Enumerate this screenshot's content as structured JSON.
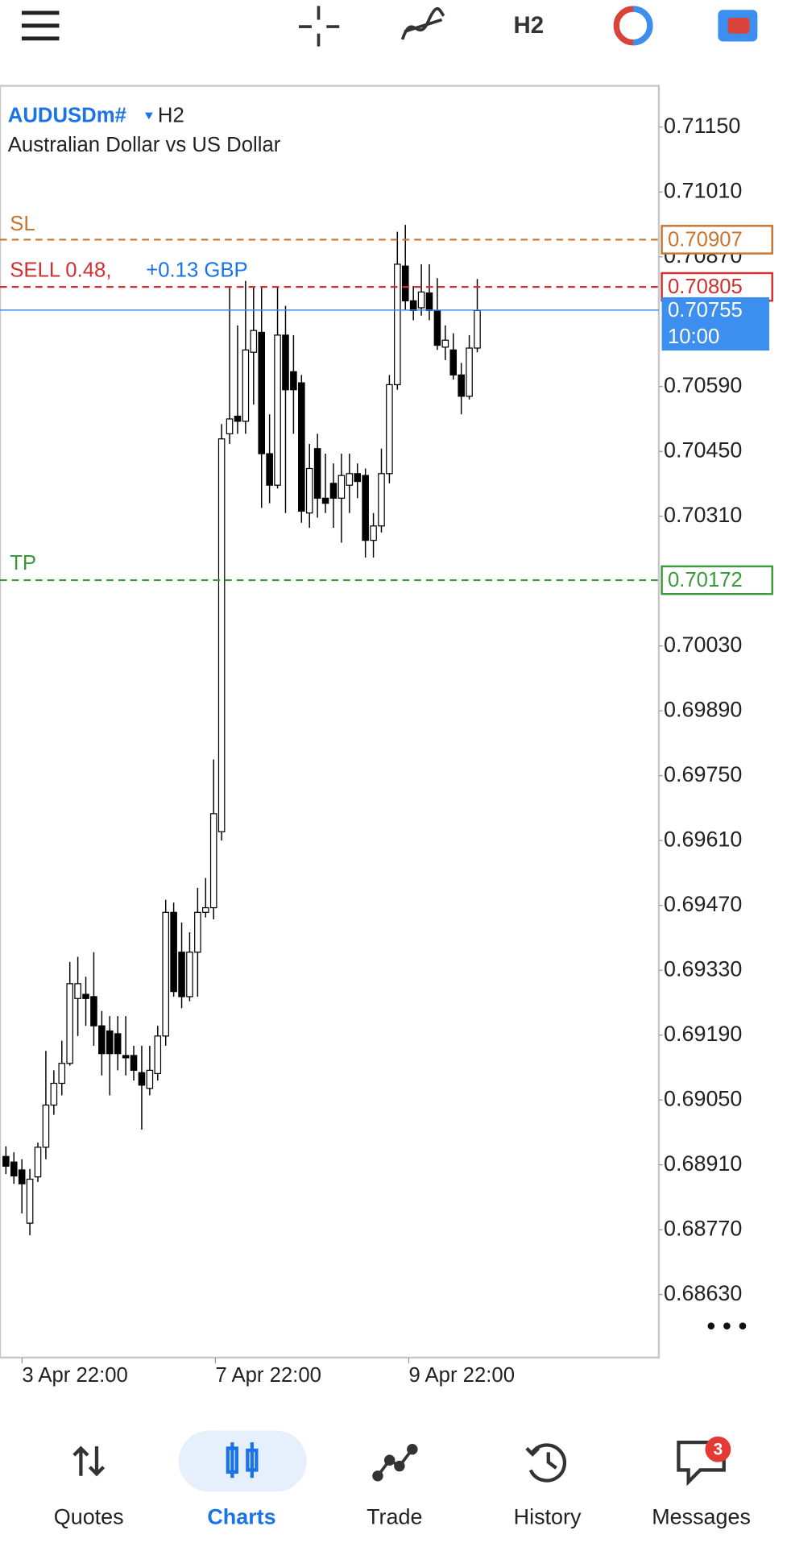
{
  "toolbar": {
    "timeframe": "H2"
  },
  "chart_data": {
    "type": "candlestick",
    "symbol": "AUDUSDm#",
    "timeframe": "H2",
    "description": "Australian Dollar vs US Dollar",
    "open": [
      0.68928,
      0.68916,
      0.68899,
      0.68784,
      0.68884,
      0.68948,
      0.69039,
      0.69086,
      0.69129,
      0.69269,
      0.69278,
      0.69273,
      0.6921,
      0.69199,
      0.69193,
      0.69146,
      0.69146,
      0.69109,
      0.69075,
      0.69107,
      0.69188,
      0.69455,
      0.69369,
      0.69273,
      0.69369,
      0.69455,
      0.69465,
      0.69629,
      0.70488,
      0.70526,
      0.70515,
      0.70664,
      0.70707,
      0.70445,
      0.70377,
      0.70701,
      0.70622,
      0.70598,
      0.70317,
      0.70456,
      0.70349,
      0.70381,
      0.70349,
      0.70377,
      0.70402,
      0.70398,
      0.70258,
      0.70289,
      0.70402,
      0.70594,
      0.7085,
      0.70775,
      0.7076,
      0.70792,
      0.70754,
      0.70675,
      0.70669,
      0.70615,
      0.70569,
      0.70673
    ],
    "high": [
      0.6895,
      0.68937,
      0.68922,
      0.68901,
      0.68958,
      0.69156,
      0.69114,
      0.69178,
      0.69348,
      0.69359,
      0.69316,
      0.69369,
      0.69242,
      0.69231,
      0.69231,
      0.69231,
      0.69167,
      0.69167,
      0.69167,
      0.6921,
      0.69482,
      0.69476,
      0.69433,
      0.69412,
      0.69508,
      0.69529,
      0.69785,
      0.70509,
      0.70807,
      0.70722,
      0.70818,
      0.70807,
      0.70807,
      0.7053,
      0.70807,
      0.70764,
      0.70701,
      0.70615,
      0.70466,
      0.70488,
      0.70445,
      0.70424,
      0.70445,
      0.70445,
      0.70424,
      0.70413,
      0.70317,
      0.70456,
      0.70615,
      0.70924,
      0.70939,
      0.70807,
      0.70854,
      0.70854,
      0.70824,
      0.70722,
      0.70705,
      0.70641,
      0.70701,
      0.70822
    ],
    "low": [
      0.6889,
      0.68869,
      0.68805,
      0.68758,
      0.68873,
      0.68922,
      0.69018,
      0.6906,
      0.69124,
      0.69188,
      0.6921,
      0.69167,
      0.69103,
      0.6906,
      0.69114,
      0.69103,
      0.69092,
      0.68986,
      0.6906,
      0.69092,
      0.69167,
      0.69273,
      0.69248,
      0.69263,
      0.69273,
      0.69444,
      0.6944,
      0.6961,
      0.70466,
      0.70488,
      0.70488,
      0.70551,
      0.70328,
      0.70338,
      0.7037,
      0.70317,
      0.70488,
      0.70296,
      0.70285,
      0.70307,
      0.70317,
      0.70285,
      0.70253,
      0.70317,
      0.70349,
      0.70221,
      0.70221,
      0.70275,
      0.70381,
      0.70583,
      0.70754,
      0.70733,
      0.70743,
      0.70733,
      0.70669,
      0.70647,
      0.70605,
      0.7053,
      0.70562,
      0.70664
    ],
    "close": [
      0.68907,
      0.68886,
      0.68869,
      0.68879,
      0.68948,
      0.69039,
      0.69086,
      0.69129,
      0.69301,
      0.69301,
      0.69269,
      0.6921,
      0.6915,
      0.6915,
      0.6915,
      0.69141,
      0.69114,
      0.69082,
      0.69114,
      0.69188,
      0.69455,
      0.69284,
      0.69273,
      0.69369,
      0.69455,
      0.69465,
      0.69668,
      0.70477,
      0.7052,
      0.70515,
      0.70669,
      0.70711,
      0.70445,
      0.70377,
      0.70701,
      0.70583,
      0.70583,
      0.70321,
      0.70413,
      0.70349,
      0.70338,
      0.70349,
      0.70398,
      0.70402,
      0.70385,
      0.70258,
      0.70289,
      0.70402,
      0.70594,
      0.70854,
      0.70775,
      0.70754,
      0.70794,
      0.70754,
      0.70679,
      0.7069,
      0.70615,
      0.70569,
      0.70673,
      0.70754
    ],
    "ylim": [
      0.68494,
      0.71239
    ],
    "yticks": [
      {
        "value": 0.7115,
        "label": "0.71150"
      },
      {
        "value": 0.7101,
        "label": "0.71010"
      },
      {
        "value": 0.7087,
        "label": "0.70870"
      },
      {
        "value": 0.7059,
        "label": "0.70590"
      },
      {
        "value": 0.7045,
        "label": "0.70450"
      },
      {
        "value": 0.7031,
        "label": "0.70310"
      },
      {
        "value": 0.7003,
        "label": "0.70030"
      },
      {
        "value": 0.6989,
        "label": "0.69890"
      },
      {
        "value": 0.6975,
        "label": "0.69750"
      },
      {
        "value": 0.6961,
        "label": "0.69610"
      },
      {
        "value": 0.6947,
        "label": "0.69470"
      },
      {
        "value": 0.6933,
        "label": "0.69330"
      },
      {
        "value": 0.6919,
        "label": "0.69190"
      },
      {
        "value": 0.6905,
        "label": "0.69050"
      },
      {
        "value": 0.6891,
        "label": "0.68910"
      },
      {
        "value": 0.6877,
        "label": "0.68770"
      },
      {
        "value": 0.6863,
        "label": "0.68630"
      }
    ],
    "xtick_labels": [
      "3 Apr 22:00",
      "7 Apr 22:00",
      "9 Apr 22:00"
    ],
    "stop_loss": {
      "name": "SL",
      "value": 0.70907,
      "color": "#c8752f"
    },
    "take_profit": {
      "name": "TP",
      "value": 0.70172,
      "color": "#3a9a3a"
    },
    "order": {
      "label": "SELL 0.48,",
      "profit": "+0.13 GBP",
      "value": 0.70805,
      "color": "#d03030"
    },
    "bid": {
      "value": 0.70755,
      "time": "10:00",
      "color": "#3d8fef"
    }
  },
  "nav": [
    {
      "label": "Quotes"
    },
    {
      "label": "Charts"
    },
    {
      "label": "Trade"
    },
    {
      "label": "History"
    },
    {
      "label": "Messages",
      "badge": 3
    }
  ]
}
